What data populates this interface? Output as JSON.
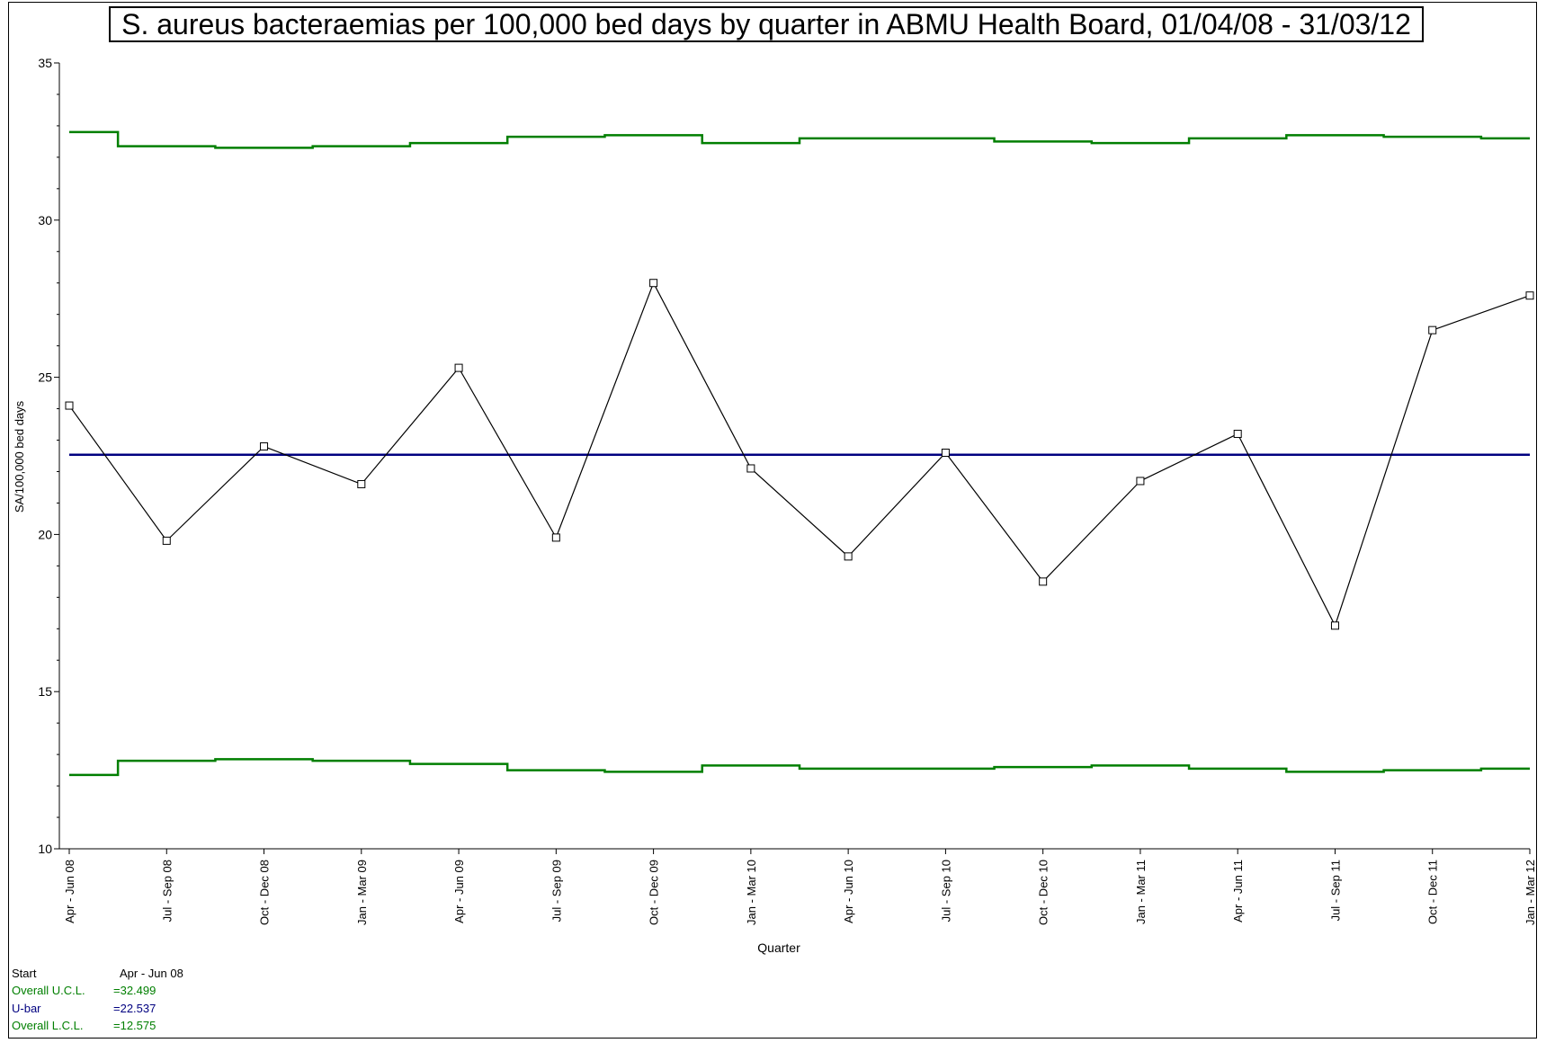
{
  "chart_data": {
    "type": "line",
    "title": "S. aureus bacteraemias per 100,000 bed days by quarter in ABMU Health Board, 01/04/08 - 31/03/12",
    "xlabel": "Quarter",
    "ylabel": "SA/100,000 bed days",
    "ylim": [
      10,
      35
    ],
    "yticks": [
      "10",
      "15",
      "20",
      "25",
      "30",
      "35"
    ],
    "categories": [
      "Apr - Jun 08",
      "Jul - Sep 08",
      "Oct - Dec 08",
      "Jan - Mar 09",
      "Apr - Jun 09",
      "Jul - Sep 09",
      "Oct - Dec 09",
      "Jan - Mar 10",
      "Apr - Jun 10",
      "Jul - Sep 10",
      "Oct - Dec 10",
      "Jan - Mar 11",
      "Apr - Jun 11",
      "Jul - Sep 11",
      "Oct - Dec 11",
      "Jan - Mar 12"
    ],
    "series": [
      {
        "values": [
          24.1,
          19.8,
          22.8,
          21.6,
          25.3,
          19.9,
          28.0,
          22.1,
          19.3,
          22.6,
          18.5,
          21.7,
          23.2,
          17.1,
          26.5,
          27.6
        ],
        "color": "#000000"
      },
      {
        "values": [
          32.8,
          32.35,
          32.3,
          32.35,
          32.45,
          32.65,
          32.7,
          32.45,
          32.6,
          32.6,
          32.5,
          32.45,
          32.6,
          32.7,
          32.65,
          32.6
        ],
        "color": "#007f00"
      },
      {
        "values": [
          22.537,
          22.537,
          22.537,
          22.537,
          22.537,
          22.537,
          22.537,
          22.537,
          22.537,
          22.537,
          22.537,
          22.537,
          22.537,
          22.537,
          22.537,
          22.537
        ],
        "color": "#000080"
      },
      {
        "values": [
          12.35,
          12.8,
          12.85,
          12.8,
          12.7,
          12.5,
          12.45,
          12.65,
          12.55,
          12.55,
          12.6,
          12.65,
          12.55,
          12.45,
          12.5,
          12.55
        ],
        "color": "#007f00"
      }
    ],
    "grid": false,
    "legend": {
      "start_label": "Start",
      "start_value": "Apr - Jun 08",
      "ucl_label": "Overall U.C.L.",
      "ucl_value": "=32.499",
      "ubar_label": "U-bar",
      "ubar_value": "=22.537",
      "lcl_label": "Overall L.C.L.",
      "lcl_value": "=12.575",
      "placement": "bottom-left"
    }
  }
}
